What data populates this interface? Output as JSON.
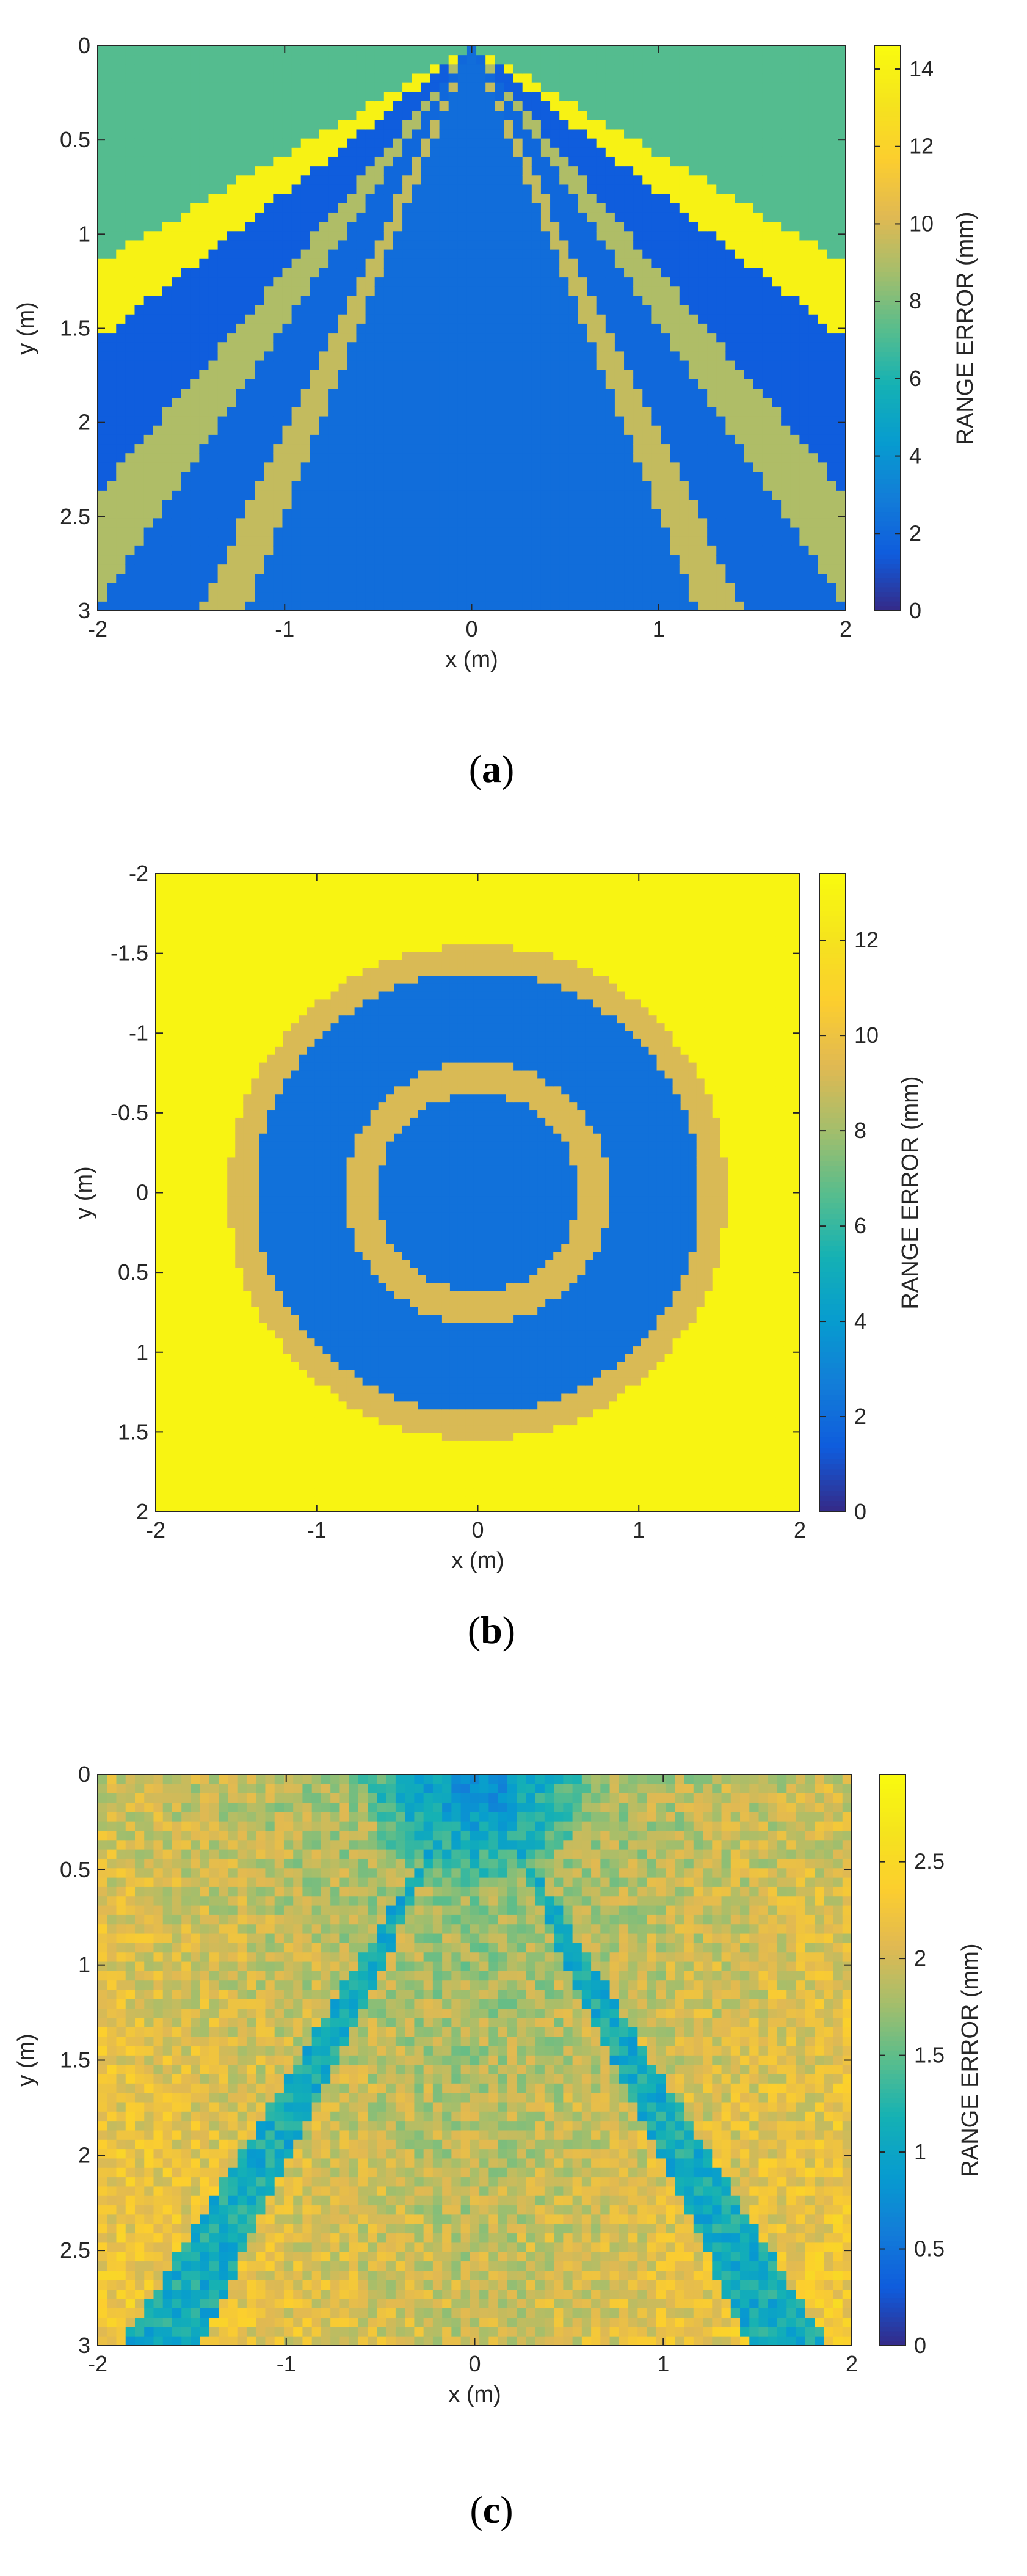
{
  "chart_data": [
    {
      "type": "heatmap",
      "panel_label": "a",
      "xlabel": "x (m)",
      "ylabel": "y (m)",
      "colorbar_label": "RANGE ERROR (mm)",
      "xlim": [
        -2,
        2
      ],
      "ylim": [
        0,
        3
      ],
      "y_axis_direction": "downward",
      "xticks": [
        -2,
        -1,
        0,
        1,
        2
      ],
      "yticks": [
        0,
        0.5,
        1,
        1.5,
        2,
        2.5,
        3
      ],
      "xtick_labels": [
        "-2",
        "-1",
        "0",
        "1",
        "2"
      ],
      "ytick_labels": [
        "0",
        "0.5",
        "1",
        "1.5",
        "2",
        "2.5",
        "3"
      ],
      "clim": [
        0,
        14.6
      ],
      "cbar_ticks": [
        0,
        2,
        4,
        6,
        8,
        10,
        12,
        14
      ],
      "cbar_tick_labels": [
        "0",
        "2",
        "4",
        "6",
        "8",
        "10",
        "12",
        "14"
      ],
      "colormap": "parula",
      "grid": false,
      "field_description": "Range error pattern with radiating wedges from origin: central blue cone (~2 mm), green bands (~9 mm), yellow side wedges (~14 mm), teal outer region (~7 mm)"
    },
    {
      "type": "heatmap",
      "panel_label": "b",
      "xlabel": "x (m)",
      "ylabel": "y (m)",
      "colorbar_label": "RANGE ERROR (mm)",
      "xlim": [
        -2,
        2
      ],
      "ylim": [
        -2,
        2
      ],
      "y_axis_direction": "downward",
      "xticks": [
        -2,
        -1,
        0,
        1,
        2
      ],
      "yticks": [
        -2,
        -1.5,
        -1,
        -0.5,
        0,
        0.5,
        1,
        1.5,
        2
      ],
      "xtick_labels": [
        "-2",
        "-1",
        "0",
        "1",
        "2"
      ],
      "ytick_labels": [
        "-2",
        "-1.5",
        "-1",
        "-0.5",
        "0",
        "0.5",
        "1",
        "1.5",
        "2"
      ],
      "clim": [
        0,
        13.4
      ],
      "cbar_ticks": [
        0,
        2,
        4,
        6,
        8,
        10,
        12
      ],
      "cbar_tick_labels": [
        "0",
        "2",
        "4",
        "6",
        "8",
        "10",
        "12"
      ],
      "colormap": "parula",
      "grid": false,
      "field_description": "Concentric rings centered at origin: blue interior (~2 mm), green ring at r~0.75 m (~9 mm), blue annulus, green ring at r~1.5 m, yellow outside (~13 mm)"
    },
    {
      "type": "heatmap",
      "panel_label": "c",
      "xlabel": "x (m)",
      "ylabel": "y (m)",
      "colorbar_label": "RANGE ERROR (mm)",
      "xlim": [
        -2,
        2
      ],
      "ylim": [
        0,
        3
      ],
      "y_axis_direction": "downward",
      "xticks": [
        -2,
        -1,
        0,
        1,
        2
      ],
      "yticks": [
        0,
        0.5,
        1,
        1.5,
        2,
        2.5,
        3
      ],
      "xtick_labels": [
        "-2",
        "-1",
        "0",
        "1",
        "2"
      ],
      "ytick_labels": [
        "0",
        "0.5",
        "1",
        "1.5",
        "2",
        "2.5",
        "3"
      ],
      "clim": [
        0,
        2.95
      ],
      "cbar_ticks": [
        0,
        0.5,
        1,
        1.5,
        2,
        2.5
      ],
      "cbar_tick_labels": [
        "0",
        "0.5",
        "1",
        "1.5",
        "2",
        "2.5"
      ],
      "colormap": "parula",
      "grid": false,
      "field_description": "Noisy field ~1.7 mm near top rising to ~2.5 mm at bottom and sides, with two thin blue/teal streaks radiating from origin and dark blue near origin"
    }
  ]
}
